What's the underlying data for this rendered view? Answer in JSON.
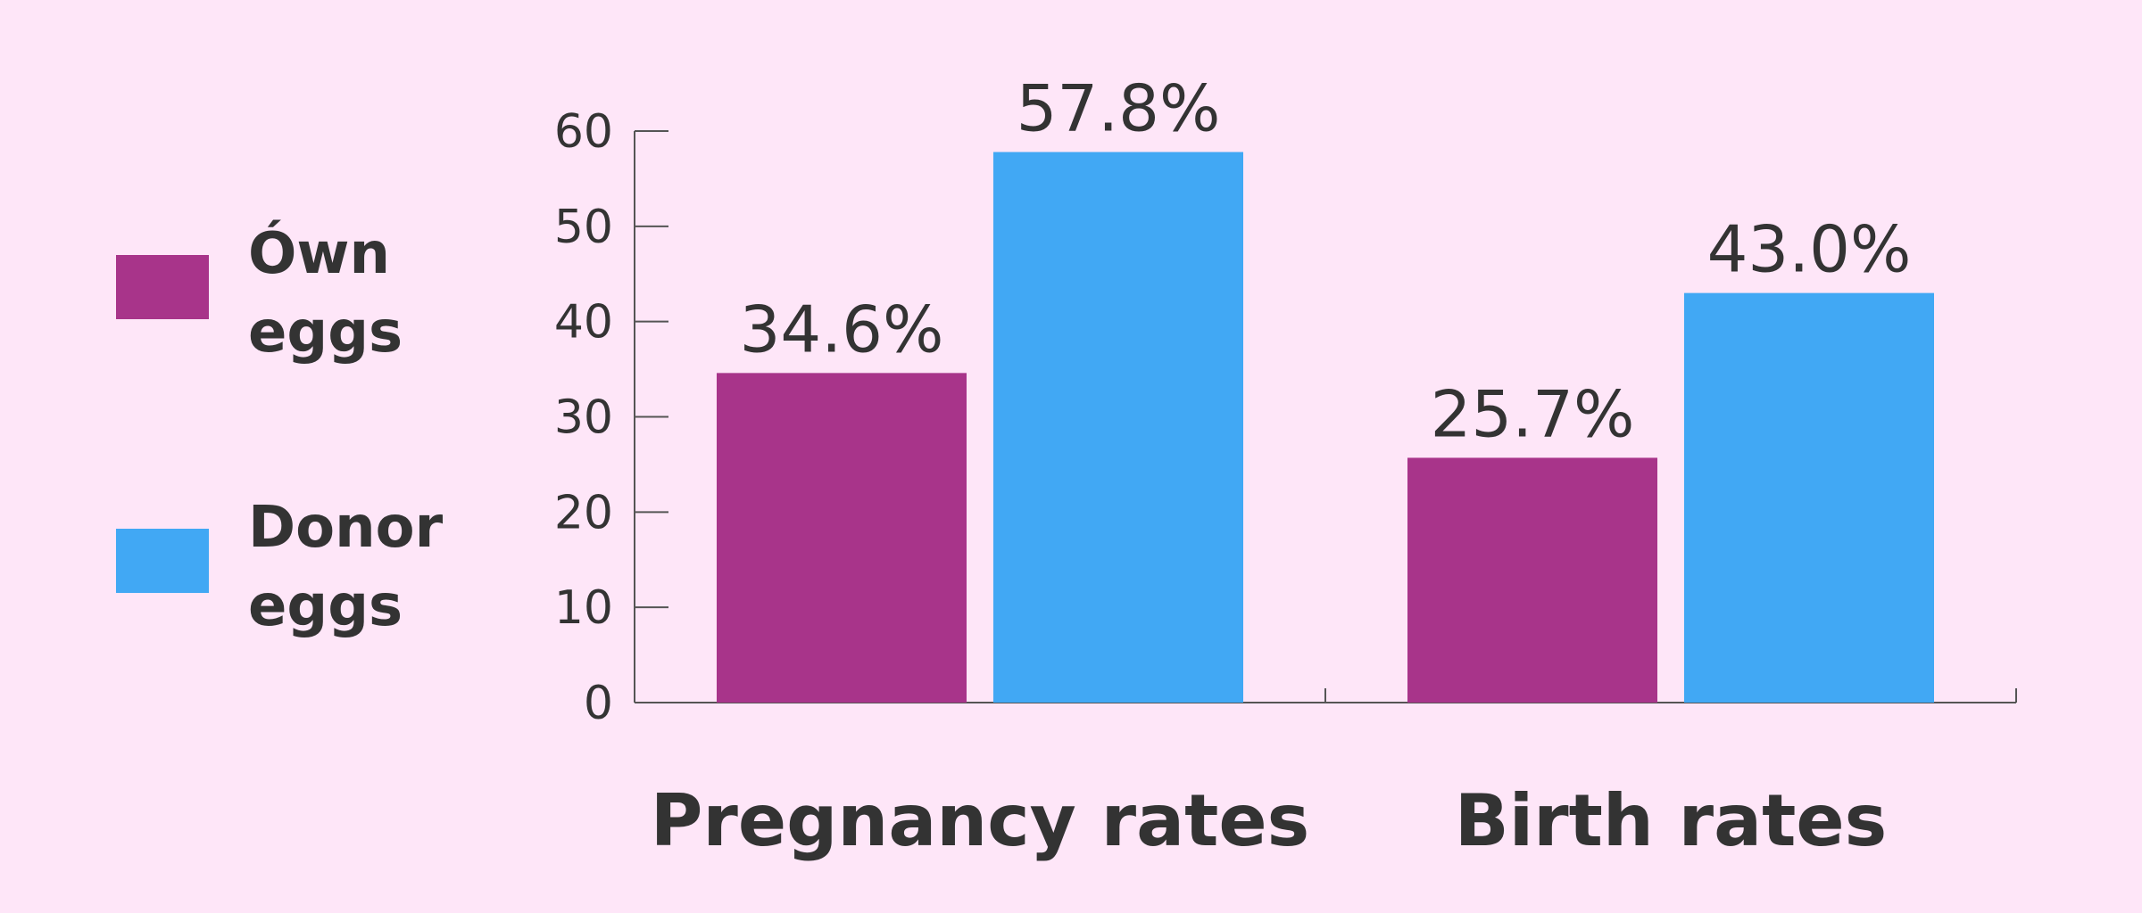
{
  "chart_data": {
    "type": "bar",
    "title": "",
    "xlabel": "",
    "ylabel": "",
    "categories": [
      "Pregnancy rates",
      "Birth rates"
    ],
    "series": [
      {
        "name": "Ówn eggs",
        "legend_lines": [
          "Ówn",
          "eggs"
        ],
        "color": "#a8348a",
        "values": [
          34.6,
          25.7
        ],
        "labels": [
          "34.6%",
          "25.7%"
        ]
      },
      {
        "name": "Donor eggs",
        "legend_lines": [
          "Donor",
          "eggs"
        ],
        "color": "#41a8f4",
        "values": [
          57.8,
          43.0
        ],
        "labels": [
          "57.8%",
          "43.0%"
        ]
      }
    ],
    "ylim": [
      0,
      60
    ],
    "yticks": [
      0,
      10,
      20,
      30,
      40,
      50,
      60
    ],
    "grid": false,
    "legend_position": "left"
  },
  "colors": {
    "background": "#fee6f8",
    "axis": "#555555",
    "text": "#333333"
  }
}
